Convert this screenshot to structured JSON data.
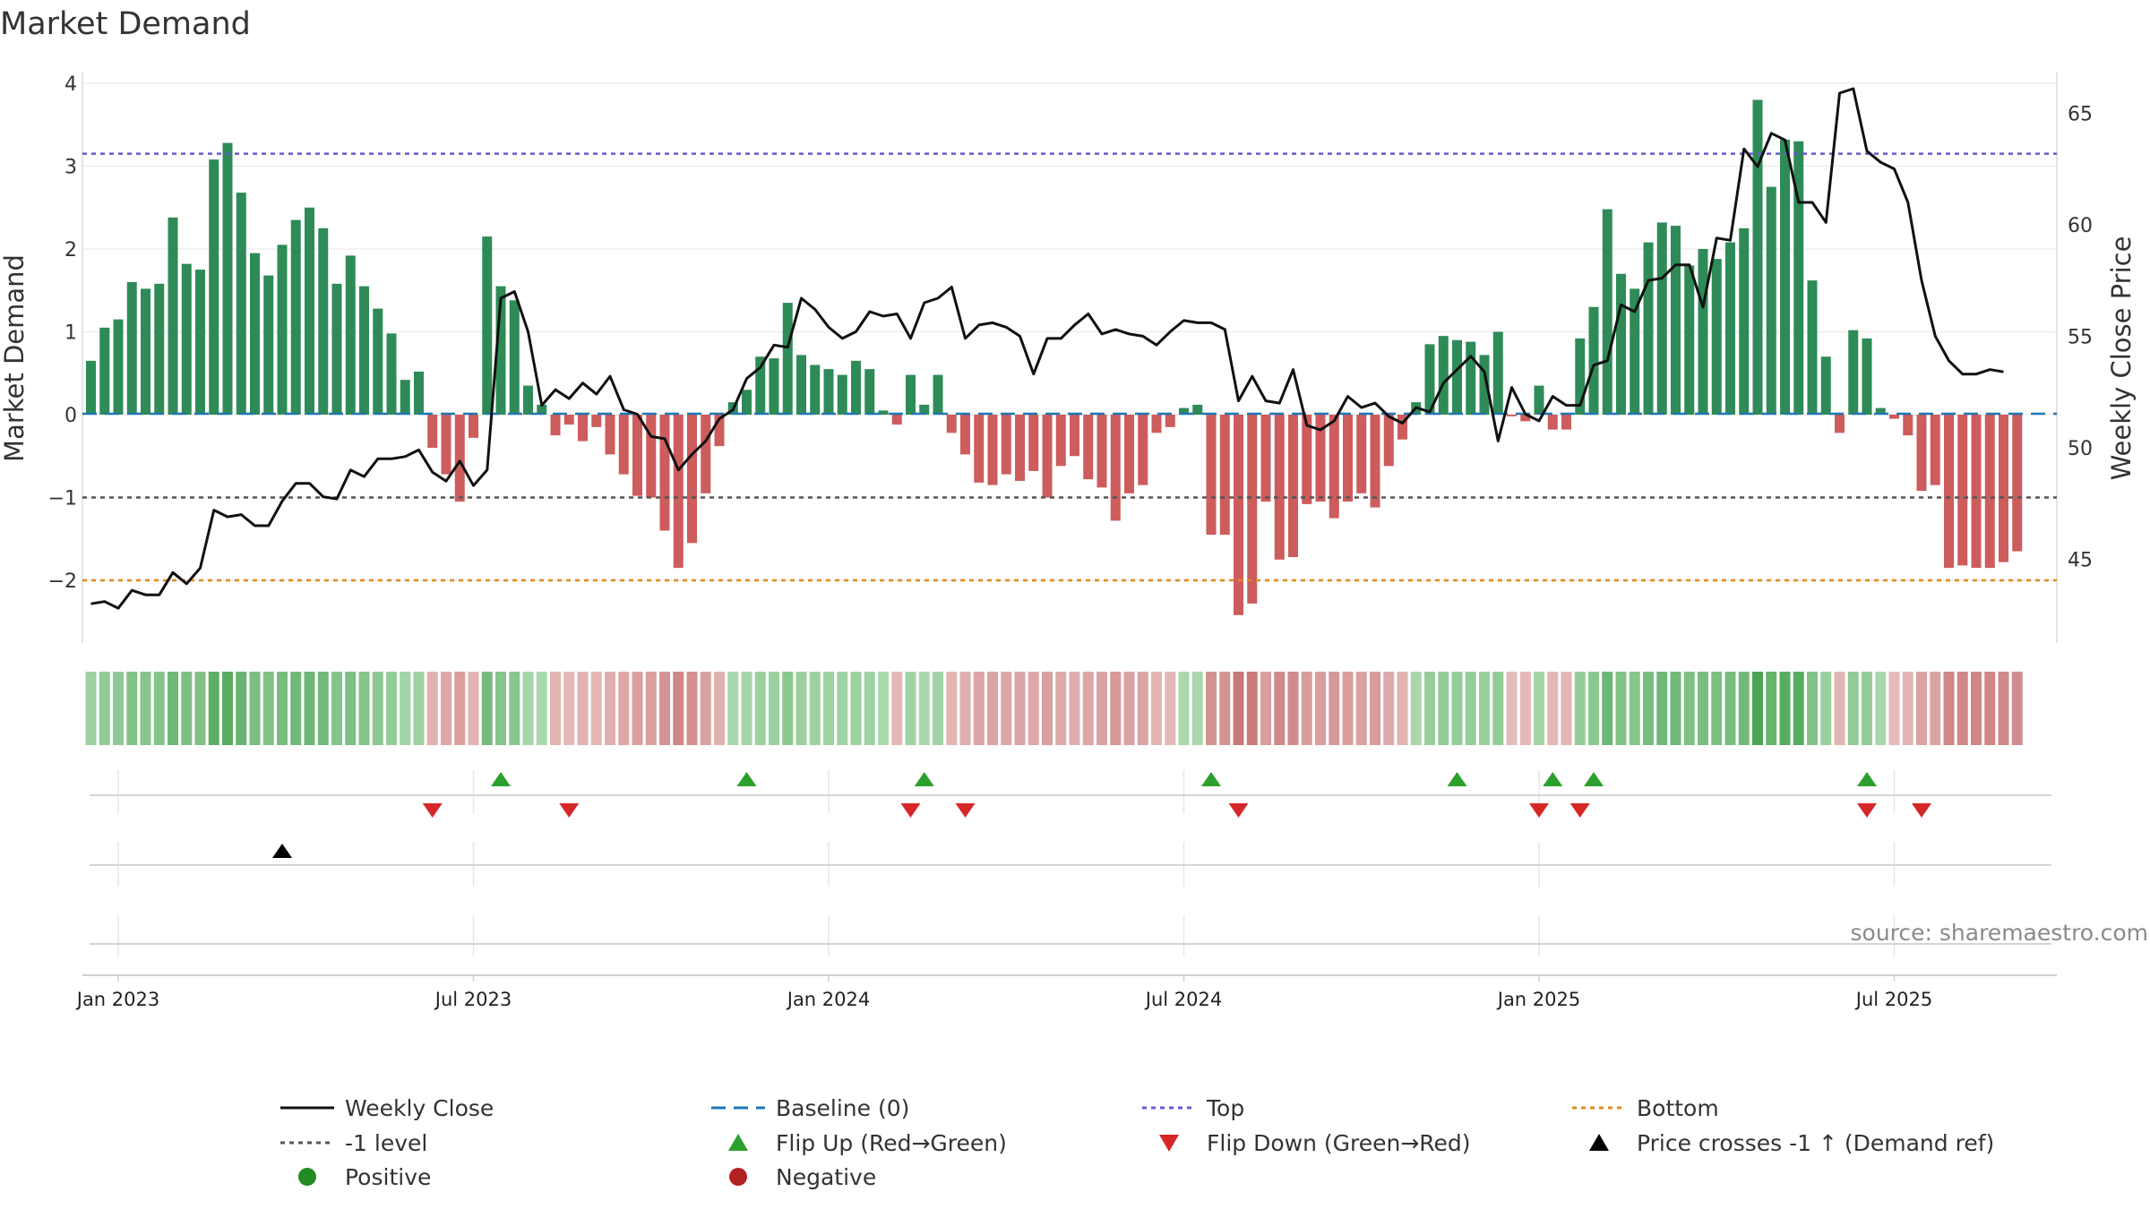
{
  "chart_data": {
    "type": "bar",
    "title": "Market Demand",
    "ylabel": "Market Demand",
    "y2label": "Weekly Close Price",
    "ylim": [
      -2.75,
      4.1
    ],
    "y2lim": [
      41.2,
      66.3
    ],
    "yticks": [
      4,
      3,
      2,
      1,
      0,
      -1,
      -2
    ],
    "ytick_labels": [
      "4",
      "3",
      "2",
      "1",
      "0",
      "−1",
      "−2"
    ],
    "y2ticks": [
      65,
      60,
      55,
      50,
      45
    ],
    "y2tick_labels": [
      "65",
      "60",
      "55",
      "50",
      "45"
    ],
    "xtick_labels": [
      "Jan 2023",
      "Jul 2023",
      "Jan 2024",
      "Jul 2024",
      "Jan 2025",
      "Jul 2025"
    ],
    "xtick_weeks": [
      2,
      28,
      54,
      80,
      106,
      132
    ],
    "reference_lines": {
      "top": 3.15,
      "minus_one": -1.0,
      "bottom": -2.0,
      "baseline": 0
    },
    "demand": [
      0.65,
      1.05,
      1.15,
      1.6,
      1.52,
      1.58,
      2.38,
      1.82,
      1.75,
      3.08,
      3.28,
      2.68,
      1.95,
      1.68,
      2.05,
      2.35,
      2.5,
      2.25,
      1.58,
      1.92,
      1.55,
      1.28,
      0.98,
      0.42,
      0.52,
      -0.4,
      -0.72,
      -1.05,
      -0.28,
      2.15,
      1.55,
      1.38,
      0.35,
      0.12,
      -0.25,
      -0.12,
      -0.32,
      -0.15,
      -0.48,
      -0.72,
      -0.98,
      -1.0,
      -1.4,
      -1.85,
      -1.55,
      -0.95,
      -0.38,
      0.15,
      0.3,
      0.7,
      0.68,
      1.35,
      0.72,
      0.6,
      0.55,
      0.48,
      0.65,
      0.55,
      0.05,
      -0.12,
      0.48,
      0.12,
      0.48,
      -0.22,
      -0.48,
      -0.82,
      -0.85,
      -0.72,
      -0.8,
      -0.68,
      -1.0,
      -0.62,
      -0.5,
      -0.78,
      -0.88,
      -1.28,
      -0.95,
      -0.85,
      -0.22,
      -0.15,
      0.08,
      0.12,
      -1.45,
      -1.45,
      -2.42,
      -2.28,
      -1.05,
      -1.75,
      -1.72,
      -1.08,
      -1.05,
      -1.25,
      -1.05,
      -0.95,
      -1.12,
      -0.62,
      -0.3,
      0.15,
      0.85,
      0.95,
      0.9,
      0.88,
      0.72,
      1.0,
      -0.02,
      -0.08,
      0.35,
      -0.18,
      -0.18,
      0.92,
      1.3,
      2.48,
      1.7,
      1.52,
      2.08,
      2.32,
      2.28,
      1.8,
      2.0,
      1.88,
      2.08,
      2.25,
      3.8,
      2.75,
      3.32,
      3.3,
      1.62,
      0.7,
      -0.22,
      1.02,
      0.92,
      0.08,
      -0.05,
      -0.25,
      -0.92,
      -0.85,
      -1.85,
      -1.82,
      -1.85,
      -1.85,
      -1.78,
      -1.65
    ],
    "close": [
      43.0,
      43.1,
      42.8,
      43.6,
      43.4,
      43.4,
      44.4,
      43.9,
      44.6,
      47.2,
      46.9,
      47.0,
      46.5,
      46.5,
      47.6,
      48.4,
      48.4,
      47.8,
      47.7,
      49.0,
      48.7,
      49.5,
      49.5,
      49.6,
      49.9,
      48.9,
      48.5,
      49.4,
      48.3,
      49.0,
      56.7,
      57.0,
      55.2,
      51.9,
      52.6,
      52.2,
      52.9,
      52.4,
      53.2,
      51.7,
      51.5,
      50.5,
      50.4,
      49.0,
      49.7,
      50.3,
      51.3,
      51.7,
      53.1,
      53.6,
      54.6,
      54.5,
      56.7,
      56.2,
      55.4,
      54.9,
      55.2,
      56.1,
      55.9,
      56.0,
      54.9,
      56.5,
      56.7,
      57.2,
      54.9,
      55.5,
      55.6,
      55.4,
      55.0,
      53.3,
      54.9,
      54.9,
      55.5,
      56.0,
      55.1,
      55.3,
      55.1,
      55.0,
      54.6,
      55.2,
      55.7,
      55.6,
      55.6,
      55.3,
      52.1,
      53.2,
      52.1,
      52.0,
      53.5,
      51.0,
      50.8,
      51.2,
      52.3,
      51.8,
      52.0,
      51.4,
      51.1,
      51.8,
      51.6,
      52.9,
      53.5,
      54.1,
      53.4,
      50.3,
      52.7,
      51.5,
      51.2,
      52.3,
      51.9,
      51.9,
      53.7,
      53.9,
      56.4,
      56.1,
      57.5,
      57.6,
      58.2,
      58.2,
      56.3,
      59.4,
      59.3,
      63.4,
      62.6,
      64.1,
      63.8,
      61.0,
      61.0,
      60.1,
      65.9,
      66.1,
      63.3,
      62.8,
      62.5,
      61.0,
      57.5,
      55.0,
      53.9,
      53.3,
      53.3,
      53.5,
      53.4
    ],
    "markers": {
      "flip_up_weeks": [
        30,
        48,
        61,
        82,
        100,
        107,
        110,
        130
      ],
      "flip_down_weeks": [
        25,
        35,
        60,
        64,
        84,
        106,
        109,
        130,
        134
      ],
      "price_cross_weeks": [
        14
      ]
    },
    "legend": [
      "Weekly Close",
      "Baseline (0)",
      "Top",
      "Bottom",
      "-1 level",
      "Flip Up (Red→Green)",
      "Flip Down (Green→Red)",
      "Price crosses -1 ↑ (Demand ref)",
      "Positive",
      "Negative"
    ],
    "legend_position": "bottom-center"
  },
  "source": "source: sharemaestro.com",
  "colors": {
    "positive": "#2e8b57",
    "negative": "#cd5c5c",
    "close": "#111111",
    "baseline": "#1f77b4",
    "top": "#6a5acd",
    "bottom": "#e08a1e",
    "minus_one": "#555555",
    "flip_up": "#2ca02c",
    "flip_down": "#d62728",
    "price_cross": "#000000",
    "positive_dot": "#228b22",
    "negative_dot": "#b22222"
  }
}
